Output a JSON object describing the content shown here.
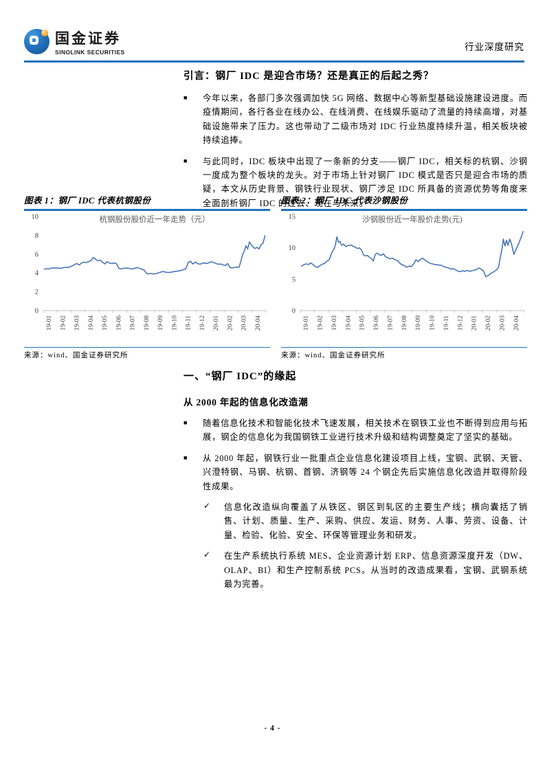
{
  "header": {
    "brand_cn": "国金证券",
    "brand_en": "SINOLINK SECURITIES",
    "doc_type": "行业深度研究"
  },
  "markers": {
    "square": "■",
    "check": "✓"
  },
  "intro": {
    "title": "引言：钢厂 IDC 是迎合市场？还是真正的后起之秀？",
    "bullets": [
      "今年以来，各部门多次强调加快 5G 网络、数据中心等新型基础设施建设进度。而疫情期间，各行各业在线办公、在线消费、在线娱乐驱动了流量的持续高增，对基础设施带来了压力。这也带动了二级市场对 IDC 行业热度持续升温，相关板块被持续追捧。",
      "与此同时，IDC 板块中出现了一条新的分支——钢厂 IDC，相关标的杭钢、沙钢一度成为整个板块的龙头。对于市场上针对钢厂 IDC 模式是否只是迎合市场的质疑，本文从历史背景、钢铁行业现状、钢厂涉足 IDC 所具备的资源优势等角度来全面剖析钢厂 IDC 的过去、现在与未来。"
    ]
  },
  "figures": [
    {
      "caption": "图表 1：钢厂 IDC 代表杭钢股份",
      "source": "来源：wind、国金证券研究所"
    },
    {
      "caption": "图表 2：钢厂 IDC 代表沙钢股份",
      "source": "来源：wind、国金证券研究所"
    }
  ],
  "chart_data": [
    {
      "type": "line",
      "title": "杭钢股份股价近一年走势（元）",
      "xlabel": "",
      "ylabel": "",
      "ylim": [
        0,
        10
      ],
      "y_ticks": [
        0,
        2,
        4,
        6,
        8,
        10
      ],
      "grid": false,
      "legend": "none",
      "line_color": "#4A76B8",
      "x_ticks": [
        "19-01",
        "19-02",
        "19-03",
        "19-04",
        "19-05",
        "19-06",
        "19-07",
        "19-08",
        "19-09",
        "19-10",
        "19-11",
        "19-12",
        "20-01",
        "20-02",
        "20-03",
        "20-04"
      ],
      "monthly_values": [
        [
          4.4,
          4.45,
          4.42,
          4.5,
          4.55,
          4.5
        ],
        [
          4.52,
          4.48,
          4.55,
          4.6,
          4.58,
          4.65
        ],
        [
          4.75,
          4.9,
          5.0,
          4.85,
          5.05,
          5.15
        ],
        [
          5.1,
          5.2,
          5.3,
          5.65,
          5.45,
          5.3
        ],
        [
          5.35,
          5.15,
          4.95,
          5.2,
          5.05,
          5.0
        ],
        [
          5.05,
          5.0,
          4.5,
          4.42,
          4.48,
          4.52
        ],
        [
          4.5,
          4.45,
          4.42,
          4.5,
          4.58,
          4.48
        ],
        [
          4.4,
          4.3,
          3.95,
          3.9,
          3.95,
          3.88
        ],
        [
          3.92,
          4.0,
          4.08,
          4.15,
          4.1,
          4.05
        ],
        [
          4.05,
          4.1,
          4.15,
          4.18,
          4.22,
          4.28
        ],
        [
          4.35,
          4.45,
          5.1,
          5.25,
          4.95,
          5.15
        ],
        [
          5.0,
          4.92,
          5.02,
          5.06,
          5.0,
          5.1
        ],
        [
          5.18,
          5.1,
          5.0,
          4.92,
          4.95,
          4.85
        ],
        [
          4.8,
          5.0,
          4.58,
          4.52,
          4.6,
          4.62
        ],
        [
          4.6,
          5.2,
          5.9,
          6.3,
          6.9,
          6.55,
          7.3,
          7.0
        ],
        [
          6.75,
          6.6,
          6.72,
          6.55,
          7.0,
          7.15,
          7.95
        ]
      ]
    },
    {
      "type": "line",
      "title": "沙钢股份近一年股价走势(元)",
      "xlabel": "",
      "ylabel": "",
      "ylim": [
        0,
        15
      ],
      "y_ticks": [
        0,
        5,
        10,
        15
      ],
      "grid": false,
      "legend": "none",
      "line_color": "#4A76B8",
      "x_ticks": [
        "19-01",
        "19-02",
        "19-03",
        "19-04",
        "19-05",
        "19-06",
        "19-07",
        "19-08",
        "19-09",
        "19-10",
        "19-11",
        "19-12",
        "20-01",
        "20-02",
        "20-03",
        "20-04"
      ],
      "monthly_values": [
        [
          7.1,
          7.3,
          7.45,
          7.35,
          7.6,
          7.3
        ],
        [
          7.0,
          6.9,
          7.2,
          7.4,
          7.55,
          7.9
        ],
        [
          8.1,
          8.7,
          9.4,
          9.7,
          10.4,
          11.75,
          10.9,
          11.0,
          10.4
        ],
        [
          10.6,
          10.2,
          10.35,
          10.45,
          10.3,
          10.1
        ],
        [
          9.9,
          10.0,
          9.7,
          8.9,
          8.7,
          8.8,
          8.5
        ],
        [
          8.3,
          7.9,
          9.0,
          9.15,
          8.9,
          8.8,
          9.05
        ],
        [
          8.6,
          8.4,
          8.25,
          8.35,
          8.1,
          8.0
        ],
        [
          7.6,
          7.3,
          7.2,
          6.9,
          7.1,
          7.0
        ],
        [
          7.4,
          8.1,
          7.8,
          8.2,
          8.35,
          8.0
        ],
        [
          7.8,
          7.55,
          7.45,
          7.35,
          7.3,
          7.25
        ],
        [
          7.2,
          7.0,
          6.9,
          6.8,
          6.6,
          6.7
        ],
        [
          6.5,
          6.3,
          6.2,
          6.35,
          6.25,
          6.4
        ],
        [
          6.25,
          6.35,
          6.45,
          6.55,
          6.8,
          6.6
        ],
        [
          6.3,
          5.4,
          5.6,
          5.9,
          6.1,
          6.35
        ],
        [
          6.6,
          7.0,
          8.5,
          9.7,
          11.4,
          10.3,
          11.2,
          10.4,
          11.4
        ],
        [
          10.6,
          8.95,
          9.8,
          10.6,
          11.6,
          12.6
        ]
      ]
    }
  ],
  "section": {
    "heading": "一、“钢厂 IDC”的缘起",
    "subheading": "从 2000 年起的信息化改造潮",
    "bullets": [
      "随着信息化技术和智能化技术飞速发展，相关技术在钢铁工业也不断得到应用与拓展，钢企的信息化为我国钢铁工业进行技术升级和结构调整奠定了坚实的基础。",
      "从 2000 年起，钢铁行业一批重点企业信息化建设项目上线，宝钢、武钢、天管、兴澄特钢、马钢、杭钢、首钢、济钢等 24 个钢企先后实施信息化改造并取得阶段性成果。"
    ],
    "check_bullets": [
      "信息化改造纵向覆盖了从铁区、钢区到轧区的主要生产线；横向囊括了销售、计划、质量、生产、采购、供应、发运、财务、人事、劳资、设备、计量、检验、化验、安全、环保等管理业务和研发。",
      "在生产系统执行系统 MES、企业资源计划 ERP、信息资源深度开发（DW、OLAP、BI）和生产控制系统 PCS。从当时的改造成果看，宝钢、武钢系统最为完善。"
    ]
  },
  "footer": {
    "page_number": "- 4 -"
  },
  "colors": {
    "accent_blue": "#1F73BD",
    "chart_line": "#4A76B8",
    "axis_gray": "#BFBFBF",
    "chart_title_gray": "#595959"
  }
}
